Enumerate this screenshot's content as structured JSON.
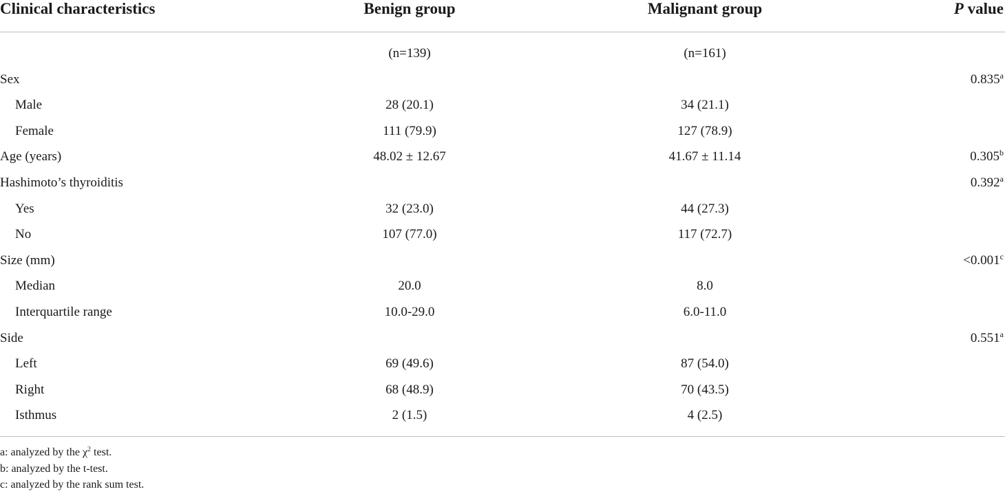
{
  "table": {
    "headers": {
      "col0": "Clinical characteristics",
      "col1": "Benign group",
      "col2": "Malignant group",
      "col3_italic": "P",
      "col3_rest": " value"
    },
    "rows": [
      {
        "label": "",
        "benign": "(n=139)",
        "malignant": "(n=161)",
        "p": "",
        "p_sup": "",
        "indent": false
      },
      {
        "label": "Sex",
        "benign": "",
        "malignant": "",
        "p": "0.835",
        "p_sup": "a",
        "indent": false
      },
      {
        "label": "Male",
        "benign": "28 (20.1)",
        "malignant": "34 (21.1)",
        "p": "",
        "p_sup": "",
        "indent": true
      },
      {
        "label": "Female",
        "benign": "111 (79.9)",
        "malignant": "127 (78.9)",
        "p": "",
        "p_sup": "",
        "indent": true
      },
      {
        "label": "Age (years)",
        "benign": "48.02 ± 12.67",
        "malignant": "41.67 ± 11.14",
        "p": "0.305",
        "p_sup": "b",
        "indent": false
      },
      {
        "label": "Hashimoto’s thyroiditis",
        "benign": "",
        "malignant": "",
        "p": "0.392",
        "p_sup": "a",
        "indent": false
      },
      {
        "label": "Yes",
        "benign": "32 (23.0)",
        "malignant": "44 (27.3)",
        "p": "",
        "p_sup": "",
        "indent": true
      },
      {
        "label": "No",
        "benign": "107 (77.0)",
        "malignant": "117 (72.7)",
        "p": "",
        "p_sup": "",
        "indent": true
      },
      {
        "label": "Size (mm)",
        "benign": "",
        "malignant": "",
        "p": "<0.001",
        "p_sup": "c",
        "indent": false
      },
      {
        "label": "Median",
        "benign": "20.0",
        "malignant": "8.0",
        "p": "",
        "p_sup": "",
        "indent": true
      },
      {
        "label": "Interquartile range",
        "benign": "10.0-29.0",
        "malignant": "6.0-11.0",
        "p": "",
        "p_sup": "",
        "indent": true
      },
      {
        "label": "Side",
        "benign": "",
        "malignant": "",
        "p": "0.551",
        "p_sup": "a",
        "indent": false
      },
      {
        "label": "Left",
        "benign": "69 (49.6)",
        "malignant": "87 (54.0)",
        "p": "",
        "p_sup": "",
        "indent": true
      },
      {
        "label": "Right",
        "benign": "68 (48.9)",
        "malignant": "70 (43.5)",
        "p": "",
        "p_sup": "",
        "indent": true
      },
      {
        "label": "Isthmus",
        "benign": "2 (1.5)",
        "malignant": "4 (2.5)",
        "p": "",
        "p_sup": "",
        "indent": true
      }
    ]
  },
  "footnotes": [
    {
      "pre": "a: analyzed by the χ",
      "sup": "2",
      "post": " test."
    },
    {
      "pre": "b: analyzed by the t-test.",
      "sup": "",
      "post": ""
    },
    {
      "pre": "c: analyzed by the rank sum test.",
      "sup": "",
      "post": ""
    }
  ]
}
